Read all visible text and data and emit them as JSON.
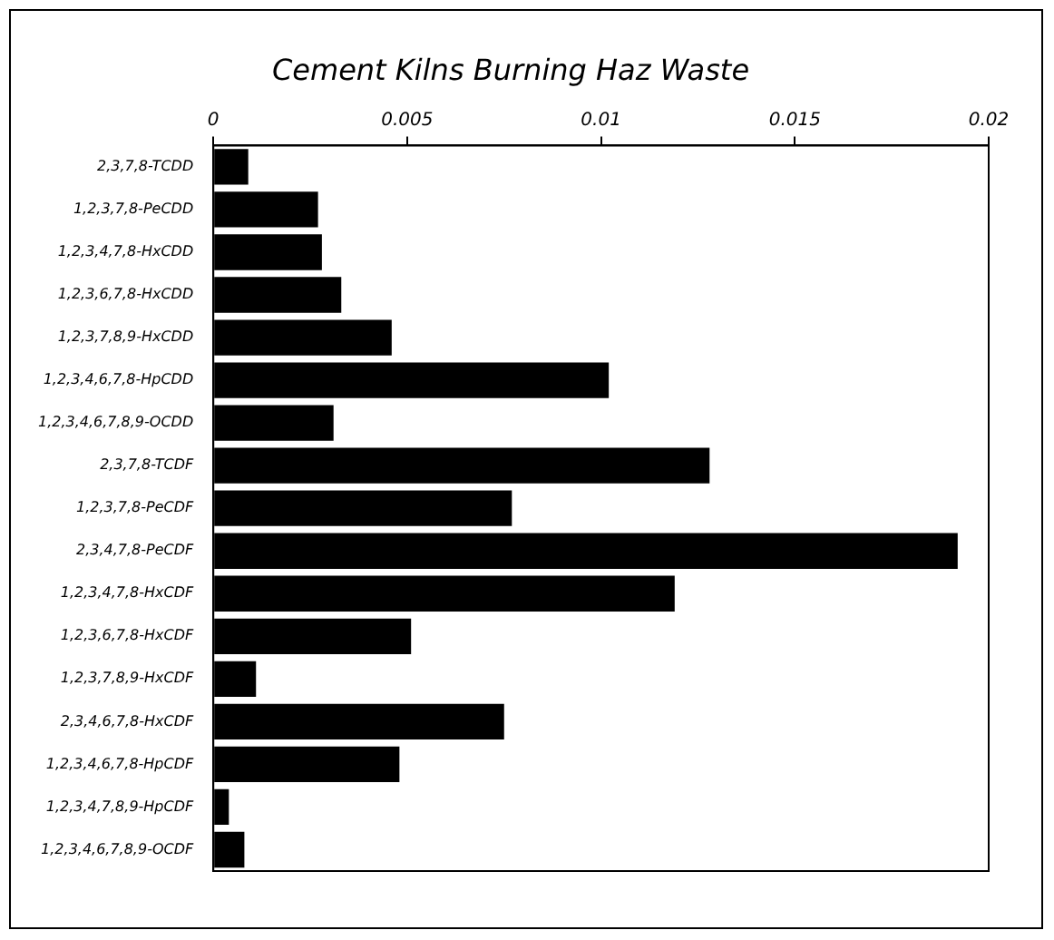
{
  "chart_data": {
    "type": "bar",
    "orientation": "horizontal",
    "title": "Cement Kilns Burning Haz Waste",
    "categories": [
      "2,3,7,8-TCDD",
      "1,2,3,7,8-PeCDD",
      "1,2,3,4,7,8-HxCDD",
      "1,2,3,6,7,8-HxCDD",
      "1,2,3,7,8,9-HxCDD",
      "1,2,3,4,6,7,8-HpCDD",
      "1,2,3,4,6,7,8,9-OCDD",
      "2,3,7,8-TCDF",
      "1,2,3,7,8-PeCDF",
      "2,3,4,7,8-PeCDF",
      "1,2,3,4,7,8-HxCDF",
      "1,2,3,6,7,8-HxCDF",
      "1,2,3,7,8,9-HxCDF",
      "2,3,4,6,7,8-HxCDF",
      "1,2,3,4,6,7,8-HpCDF",
      "1,2,3,4,7,8,9-HpCDF",
      "1,2,3,4,6,7,8,9-OCDF"
    ],
    "values": [
      0.0009,
      0.0027,
      0.0028,
      0.0033,
      0.0046,
      0.0102,
      0.0031,
      0.0128,
      0.0077,
      0.0192,
      0.0119,
      0.0051,
      0.0011,
      0.0075,
      0.0048,
      0.0004,
      0.0008
    ],
    "color": "#000000",
    "xlim": [
      0,
      0.02
    ],
    "xticks": [
      0,
      0.005,
      0.01,
      0.015,
      0.02
    ],
    "grid": false,
    "legend": false
  }
}
